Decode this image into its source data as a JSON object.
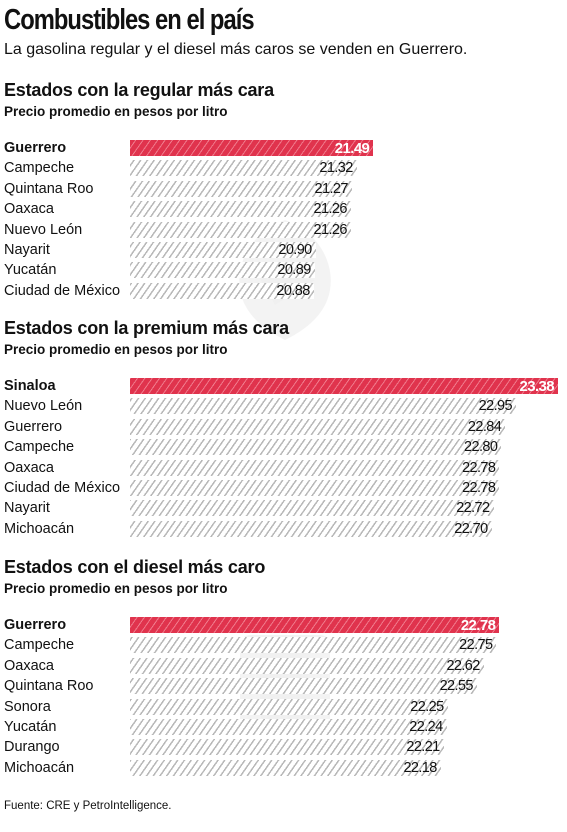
{
  "title": "Combustibles en el país",
  "subtitle": "La gasolina regular y el diesel más caros se venden en Guerrero.",
  "source": "Fuente: CRE y PetroIntelligence.",
  "colors": {
    "highlight": "#e0334d",
    "hatch": "#b8b8b8"
  },
  "chart_data": [
    {
      "type": "bar",
      "orientation": "horizontal",
      "title": "Estados con la regular más cara",
      "subtitle": "Precio promedio en pesos por litro",
      "categories": [
        "Guerrero",
        "Campeche",
        "Quintana Roo",
        "Oaxaca",
        "Nuevo León",
        "Nayarit",
        "Yucatán",
        "Ciudad de México"
      ],
      "values": [
        21.49,
        21.32,
        21.27,
        21.26,
        21.26,
        20.9,
        20.89,
        20.88
      ],
      "value_labels": [
        "21.49",
        "21.32",
        "21.27",
        "21.26",
        "21.26",
        "20.90",
        "20.89",
        "20.88"
      ],
      "highlight_index": 0
    },
    {
      "type": "bar",
      "orientation": "horizontal",
      "title": "Estados con la premium más cara",
      "subtitle": "Precio promedio en pesos por litro",
      "categories": [
        "Sinaloa",
        "Nuevo León",
        "Guerrero",
        "Campeche",
        "Oaxaca",
        "Ciudad de México",
        "Nayarit",
        "Michoacán"
      ],
      "values": [
        23.38,
        22.95,
        22.84,
        22.8,
        22.78,
        22.78,
        22.72,
        22.7
      ],
      "value_labels": [
        "23.38",
        "22.95",
        "22.84",
        "22.80",
        "22.78",
        "22.78",
        "22.72",
        "22.70"
      ],
      "highlight_index": 0
    },
    {
      "type": "bar",
      "orientation": "horizontal",
      "title": "Estados con el diesel más caro",
      "subtitle": "Precio promedio en pesos por litro",
      "categories": [
        "Guerrero",
        "Campeche",
        "Oaxaca",
        "Quintana Roo",
        "Sonora",
        "Yucatán",
        "Durango",
        "Michoacán"
      ],
      "values": [
        22.78,
        22.75,
        22.62,
        22.55,
        22.25,
        22.24,
        22.21,
        22.18
      ],
      "value_labels": [
        "22.78",
        "22.75",
        "22.62",
        "22.55",
        "22.25",
        "22.24",
        "22.21",
        "22.18"
      ],
      "highlight_index": 0
    }
  ]
}
